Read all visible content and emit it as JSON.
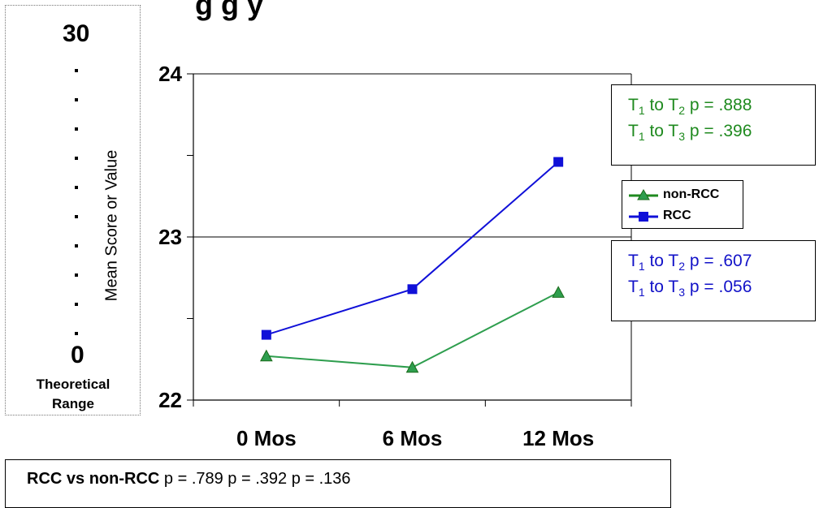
{
  "title_fragment": "g          g y",
  "theoretical_range": {
    "max": "30",
    "min": "0",
    "caption_line1": "Theoretical",
    "caption_line2": "Range"
  },
  "chart_data": {
    "type": "line",
    "title": "",
    "xlabel": "",
    "ylabel": "Mean Score or Value",
    "categories": [
      "0 Mos",
      "6 Mos",
      "12 Mos"
    ],
    "ylim": [
      22,
      24
    ],
    "yticks": [
      "22",
      "23",
      "24"
    ],
    "grid": "horizontal line at 23",
    "legend_placement": "right",
    "series": [
      {
        "name": "non-RCC",
        "values": [
          22.27,
          22.2,
          22.66
        ],
        "color": "#2e9e4e",
        "marker": "triangle"
      },
      {
        "name": "RCC",
        "values": [
          22.4,
          22.68,
          23.46
        ],
        "color": "#1010d8",
        "marker": "square"
      }
    ]
  },
  "annotations": {
    "non_rcc": {
      "color": "#1f8a1f",
      "line1": {
        "a": "T",
        "a_sub": "1",
        "mid": " to T",
        "b_sub": "2",
        "rest": " p = .888"
      },
      "line2": {
        "a": "T",
        "a_sub": "1",
        "mid": " to T",
        "b_sub": "3",
        "rest": " p = .396"
      }
    },
    "rcc": {
      "color": "#1212c8",
      "line1": {
        "a": "T",
        "a_sub": "1",
        "mid": " to T",
        "b_sub": "2",
        "rest": " p = .607"
      },
      "line2": {
        "a": "T",
        "a_sub": "1",
        "mid": " to T",
        "b_sub": "3",
        "rest": " p = .056"
      }
    }
  },
  "footer": {
    "lead": "RCC vs non-RCC",
    "values": " p = .789 p = .392 p = .136"
  }
}
